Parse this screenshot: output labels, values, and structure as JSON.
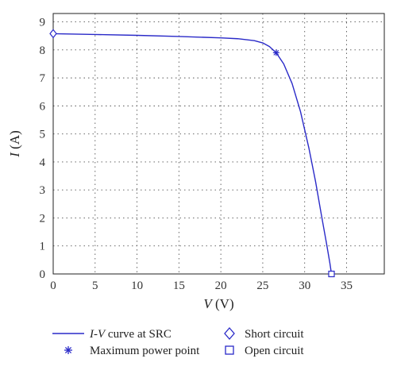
{
  "chart_data": {
    "type": "line",
    "xlabel_var": "V",
    "xlabel_unit": " (V)",
    "ylabel_var": "I",
    "ylabel_unit": " (A)",
    "xlim": [
      0,
      39.5
    ],
    "ylim": [
      0,
      9.3
    ],
    "xticks": [
      0,
      5,
      10,
      15,
      20,
      25,
      30,
      35
    ],
    "yticks": [
      0,
      1,
      2,
      3,
      4,
      5,
      6,
      7,
      8,
      9
    ],
    "grid": true,
    "legend_position": "bottom",
    "series": [
      {
        "name": "I-V curve at SRC",
        "color": "#2a2ac8",
        "x": [
          0,
          5,
          10,
          15,
          20,
          22,
          24,
          25,
          25.8,
          26.6,
          27.5,
          28.5,
          29.5,
          30.5,
          31.3,
          32,
          32.6,
          33,
          33.2
        ],
        "y": [
          8.58,
          8.55,
          8.52,
          8.48,
          8.43,
          8.4,
          8.33,
          8.25,
          8.12,
          7.9,
          7.5,
          6.8,
          5.8,
          4.5,
          3.3,
          2.1,
          1.1,
          0.4,
          0
        ]
      }
    ],
    "markers": [
      {
        "name": "Short circuit",
        "shape": "diamond",
        "x": 0,
        "y": 8.58
      },
      {
        "name": "Maximum power point",
        "shape": "asterisk",
        "x": 26.6,
        "y": 7.9
      },
      {
        "name": "Open circuit",
        "shape": "square",
        "x": 33.2,
        "y": 0
      }
    ],
    "legend": {
      "curve_var": "I-V",
      "curve_rest": " curve at SRC",
      "mpp": "Maximum power point",
      "sc": "Short circuit",
      "oc": "Open circuit"
    }
  }
}
